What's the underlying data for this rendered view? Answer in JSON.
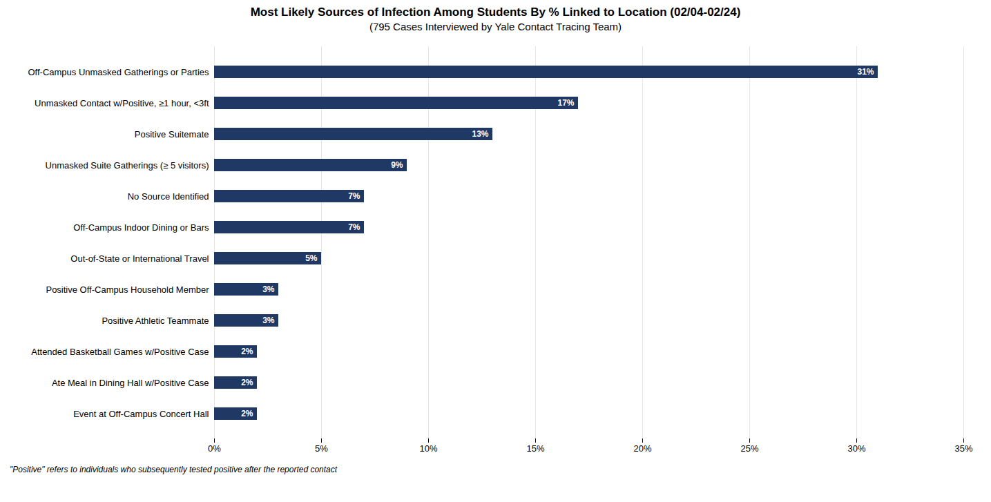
{
  "chart_data": {
    "type": "bar",
    "orientation": "horizontal",
    "title": "Most Likely Sources of Infection Among Students By % Linked to Location (02/04-02/24)",
    "subtitle": "(795 Cases Interviewed by Yale Contact Tracing Team)",
    "categories": [
      "Event at Off-Campus Concert Hall",
      "Ate Meal in Dining Hall w/Positive Case",
      "Attended Basketball Games w/Positive Case",
      "Positive Athletic Teammate",
      "Positive Off-Campus Household Member",
      "Out-of-State or International Travel",
      "Off-Campus Indoor Dining or Bars",
      "No Source Identified",
      "Unmasked Suite Gatherings (≥ 5 visitors)",
      "Positive Suitemate",
      "Unmasked Contact w/Positive, ≥1 hour, <3ft",
      "Off-Campus Unmasked Gatherings or Parties"
    ],
    "values": [
      2,
      2,
      2,
      3,
      3,
      5,
      7,
      7,
      9,
      13,
      17,
      31
    ],
    "value_labels": [
      "2%",
      "2%",
      "2%",
      "3%",
      "3%",
      "5%",
      "7%",
      "7%",
      "9%",
      "13%",
      "17%",
      "31%"
    ],
    "data_labels": true,
    "color": "#1F3864",
    "xlim": [
      0,
      35
    ],
    "xticks": [
      {
        "value": 0,
        "label": "0%"
      },
      {
        "value": 5,
        "label": "5%"
      },
      {
        "value": 10,
        "label": "10%"
      },
      {
        "value": 15,
        "label": "15%"
      },
      {
        "value": 20,
        "label": "20%"
      },
      {
        "value": 25,
        "label": "25%"
      },
      {
        "value": 30,
        "label": "30%"
      },
      {
        "value": 35,
        "label": "35%"
      }
    ],
    "grid": true,
    "annotations": [
      "\"Positive\" refers to individuals who subsequently tested positive after the reported contact"
    ]
  }
}
